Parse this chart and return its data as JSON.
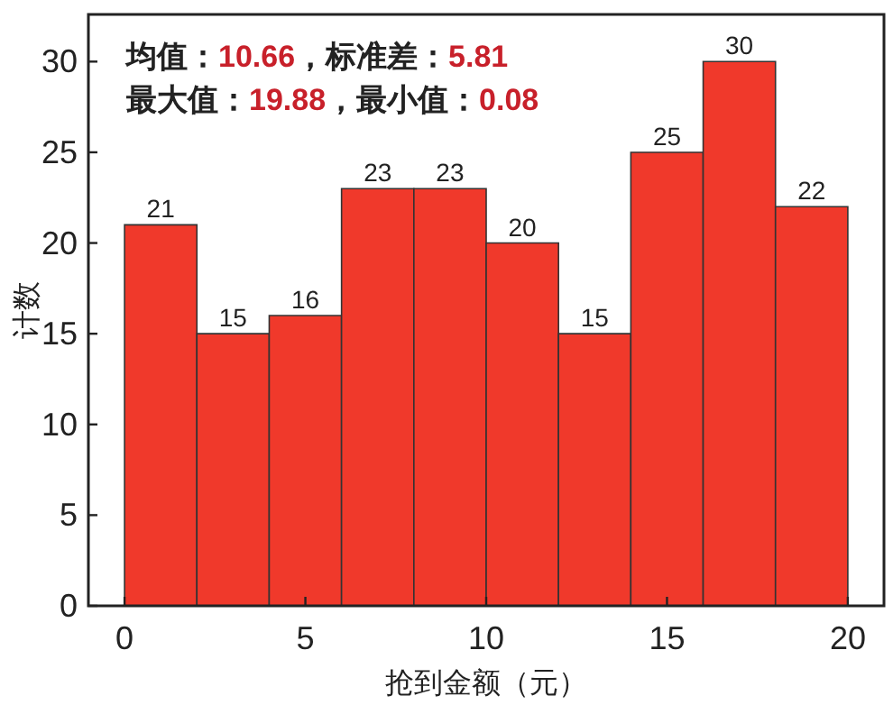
{
  "chart_data": {
    "type": "histogram",
    "xlabel": "抢到金额（元）",
    "ylabel": "计数",
    "annotations": [
      "均值：10.66，标准差：5.81",
      "最大值：19.88，最小值：0.08"
    ],
    "bins": [
      0,
      2,
      4,
      6,
      8,
      10,
      12,
      14,
      16,
      18,
      20
    ],
    "values": [
      21,
      15,
      16,
      23,
      23,
      20,
      15,
      25,
      30,
      22
    ],
    "color": "#f0392b",
    "data_labels": true,
    "xlim": [
      -1,
      21
    ],
    "ylim": [
      0,
      32.6
    ],
    "xticks": [
      0,
      5,
      10,
      15,
      20
    ],
    "yticks": [
      0,
      5,
      10,
      15,
      20,
      25,
      30
    ],
    "grid": false
  }
}
